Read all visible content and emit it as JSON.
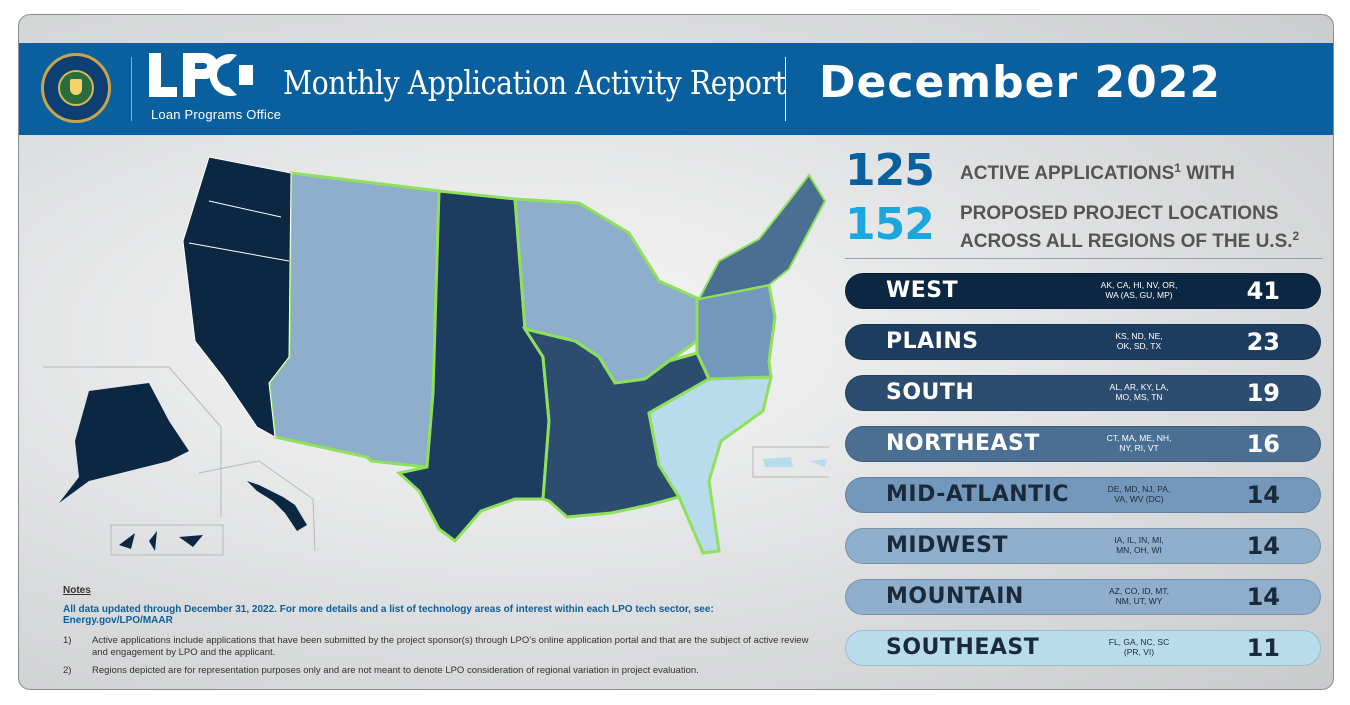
{
  "header": {
    "brand": "LPO",
    "brand_sub": "Loan Programs Office",
    "title": "Monthly Application Activity Report",
    "month": "December 2022",
    "colors": {
      "header_bg": "#0a5f9e"
    }
  },
  "summary": {
    "active_count": "125",
    "active_label": "ACTIVE APPLICATIONS",
    "active_sup": "1",
    "active_tail": " WITH",
    "proposed_count": "152",
    "proposed_line1": "PROPOSED PROJECT LOCATIONS",
    "proposed_line2": "ACROSS ALL REGIONS OF THE U.S.",
    "proposed_sup": "2"
  },
  "regions": [
    {
      "name": "WEST",
      "states_line1": "AK, CA, HI, NV, OR,",
      "states_line2": "WA (AS, GU, MP)",
      "count": "41",
      "bg": "#0b2742",
      "fg": "#ffffff"
    },
    {
      "name": "PLAINS",
      "states_line1": "KS, ND, NE,",
      "states_line2": "OK, SD, TX",
      "count": "23",
      "bg": "#1c3d5f",
      "fg": "#ffffff"
    },
    {
      "name": "SOUTH",
      "states_line1": "AL, AR, KY, LA,",
      "states_line2": "MO, MS, TN",
      "count": "19",
      "bg": "#2c4d6f",
      "fg": "#ffffff"
    },
    {
      "name": "NORTHEAST",
      "states_line1": "CT, MA, ME, NH,",
      "states_line2": "NY, RI, VT",
      "count": "16",
      "bg": "#4a6f92",
      "fg": "#ffffff"
    },
    {
      "name": "MID-ATLANTIC",
      "states_line1": "DE, MD, NJ, PA,",
      "states_line2": "VA, WV (DC)",
      "count": "14",
      "bg": "#7498bb",
      "fg": "#1b2a3a"
    },
    {
      "name": "MIDWEST",
      "states_line1": "IA, IL, IN, MI,",
      "states_line2": "MN, OH, WI",
      "count": "14",
      "bg": "#8eaecb",
      "fg": "#1b2a3a"
    },
    {
      "name": "MOUNTAIN",
      "states_line1": "AZ, CO, ID, MT,",
      "states_line2": "NM, UT, WY",
      "count": "14",
      "bg": "#8eaecb",
      "fg": "#1b2a3a"
    },
    {
      "name": "SOUTHEAST",
      "states_line1": "FL, GA, NC, SC",
      "states_line2": "(PR, VI)",
      "count": "11",
      "bg": "#b9dcec",
      "fg": "#1b2a3a"
    }
  ],
  "notes": {
    "heading": "Notes",
    "lead": "All data updated through December 31, 2022. For more details and a list of technology areas of interest within each LPO tech sector, see: Energy.gov/LPO/MAAR",
    "items": [
      {
        "num": "1)",
        "text": "Active applications include applications that have been submitted by the project sponsor(s) through LPO’s online application portal and that are the subject of active review and engagement by LPO and the applicant."
      },
      {
        "num": "2)",
        "text": "Regions depicted are for representation purposes only and are not meant to denote LPO consideration of regional variation in project evaluation."
      }
    ]
  },
  "colors": {
    "accent_blue": "#0a5f9e",
    "stat_blue": "#1aa7df",
    "region_border": "#8fe05a"
  }
}
